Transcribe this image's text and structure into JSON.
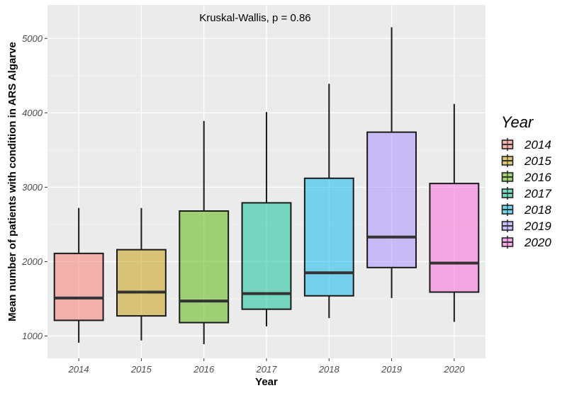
{
  "chart_data": {
    "type": "boxplot",
    "title": "",
    "annotation": "Kruskal-Wallis, p = 0.86",
    "xlabel": "Year",
    "ylabel": "Mean number of patients with condition in ARS Algarve",
    "ylim": [
      700,
      5450
    ],
    "yticks": [
      1000,
      2000,
      3000,
      4000,
      5000
    ],
    "grid": true,
    "legend_title": "Year",
    "legend_position": "right",
    "categories": [
      "2014",
      "2015",
      "2016",
      "2017",
      "2018",
      "2019",
      "2020"
    ],
    "boxes": [
      {
        "label": "2014",
        "min": 910,
        "q1": 1210,
        "median": 1510,
        "q3": 2110,
        "max": 2720,
        "color": "#F8766D"
      },
      {
        "label": "2015",
        "min": 940,
        "q1": 1270,
        "median": 1590,
        "q3": 2160,
        "max": 2720,
        "color": "#C49A00"
      },
      {
        "label": "2016",
        "min": 890,
        "q1": 1180,
        "median": 1470,
        "q3": 2680,
        "max": 3890,
        "color": "#53B400"
      },
      {
        "label": "2017",
        "min": 1130,
        "q1": 1360,
        "median": 1570,
        "q3": 2790,
        "max": 4010,
        "color": "#00C094"
      },
      {
        "label": "2018",
        "min": 1240,
        "q1": 1540,
        "median": 1850,
        "q3": 3120,
        "max": 4390,
        "color": "#00B6EB"
      },
      {
        "label": "2019",
        "min": 1510,
        "q1": 1920,
        "median": 2330,
        "q3": 3740,
        "max": 5150,
        "color": "#A58AFF"
      },
      {
        "label": "2020",
        "min": 1190,
        "q1": 1590,
        "median": 1980,
        "q3": 3050,
        "max": 4120,
        "color": "#FB61D7"
      }
    ]
  }
}
